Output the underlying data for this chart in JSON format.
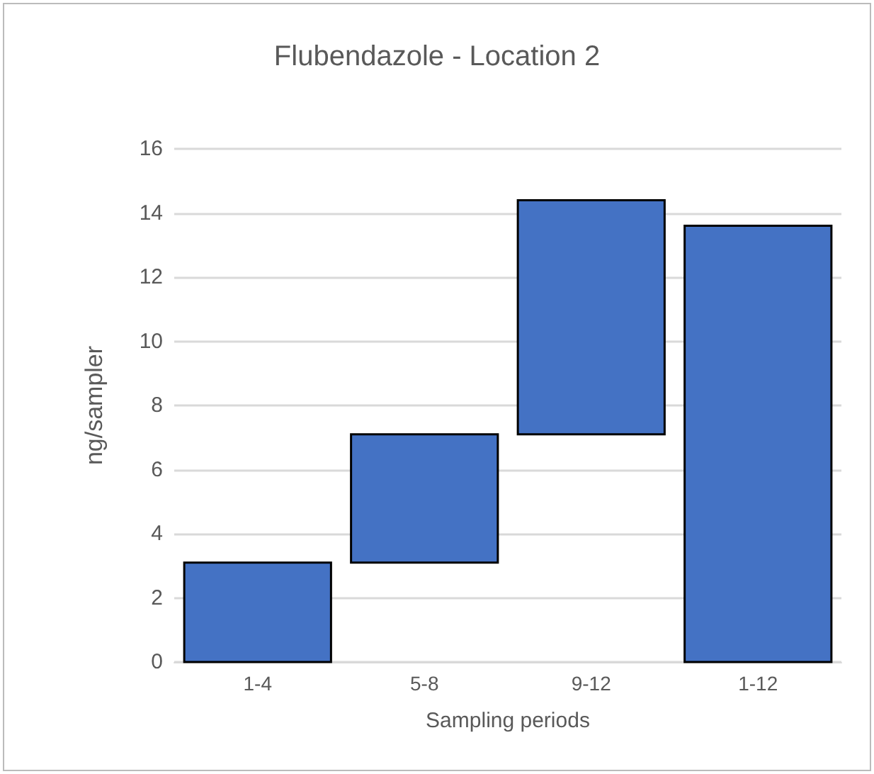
{
  "chart_data": {
    "type": "bar",
    "title": "Flubendazole - Location 2",
    "xlabel": "Sampling periods",
    "ylabel": "ng/sampler",
    "categories": [
      "1-4",
      "5-8",
      "9-12",
      "1-12"
    ],
    "base": [
      0,
      3.1,
      7.1,
      0
    ],
    "values": [
      3.1,
      4.0,
      7.3,
      13.6
    ],
    "color": "#4472c4",
    "ylim": [
      0,
      16
    ],
    "yticks": [
      0,
      2,
      4,
      6,
      8,
      10,
      12,
      14,
      16
    ],
    "grid": "y"
  }
}
